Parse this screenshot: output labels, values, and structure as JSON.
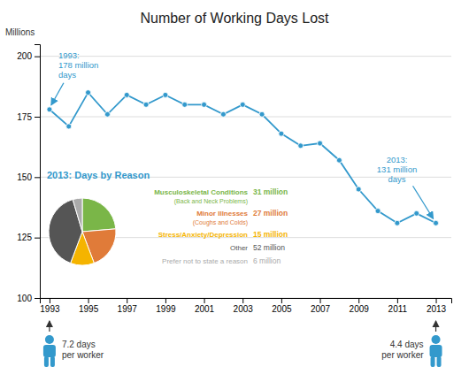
{
  "chart_data": [
    {
      "type": "line",
      "title": "Number of Working Days Lost",
      "ylabel": "Millions",
      "x": [
        1993,
        1994,
        1995,
        1996,
        1997,
        1998,
        1999,
        2000,
        2001,
        2002,
        2003,
        2004,
        2005,
        2006,
        2007,
        2008,
        2009,
        2010,
        2011,
        2012,
        2013
      ],
      "values": [
        178,
        171,
        185,
        176,
        184,
        180,
        184,
        180,
        180,
        176,
        180,
        176,
        168,
        163,
        164,
        157,
        145,
        136,
        131,
        135,
        131
      ],
      "color": "#3399cc",
      "marker": "circle",
      "xlim": [
        1992.5,
        2013.8
      ],
      "ylim": [
        100,
        205
      ],
      "xticks": [
        1993,
        1995,
        1997,
        1999,
        2001,
        2003,
        2005,
        2007,
        2009,
        2011,
        2013
      ],
      "yticks": [
        100,
        125,
        150,
        175,
        200
      ],
      "grid": true,
      "annotations": [
        {
          "text": [
            "1993:",
            "178 million",
            "days"
          ],
          "x": 1993,
          "y": 178
        },
        {
          "text": [
            "2013:",
            "131 million",
            "days"
          ],
          "x": 2013,
          "y": 131
        },
        {
          "text": [
            "7.2 days",
            "per worker"
          ],
          "x": 1993
        },
        {
          "text": [
            "4.4 days",
            "per worker"
          ],
          "x": 2013
        }
      ]
    },
    {
      "type": "pie",
      "title": "2013: Days by Reason",
      "categories": [
        "Musculoskeletal Conditions",
        "Minor Illnesses",
        "Stress/Anxiety/Depression",
        "Other",
        "Prefer not to state a reason"
      ],
      "values": [
        31,
        27,
        15,
        52,
        6
      ],
      "value_labels": [
        "31 million",
        "27 million",
        "15 million",
        "52 million",
        "6 million"
      ],
      "colors": [
        "#7ab648",
        "#e07b39",
        "#f5b400",
        "#555555",
        "#aaaaaa"
      ],
      "annotations": [
        "(Back and Neck Problems)",
        "(Coughs and Colds)"
      ]
    }
  ]
}
